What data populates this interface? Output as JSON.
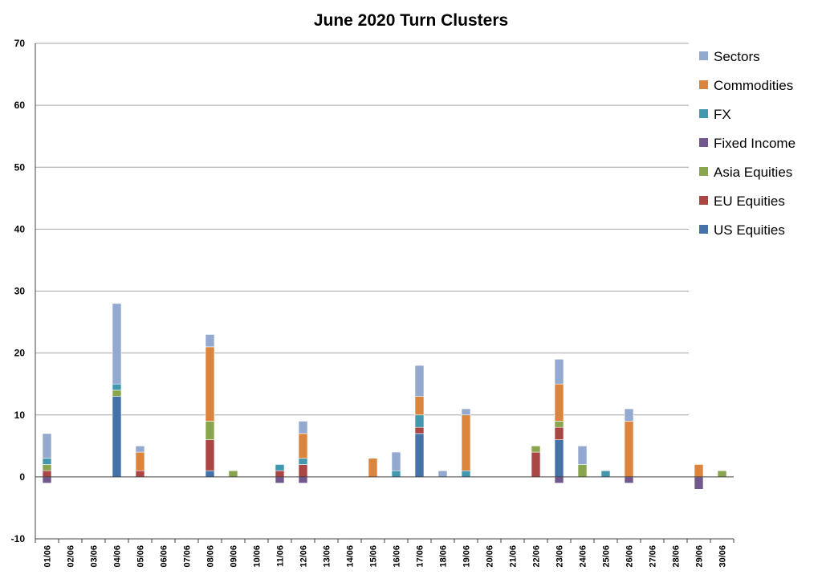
{
  "chart_data": {
    "type": "bar",
    "stacked": true,
    "title": "June 2020 Turn Clusters",
    "xlabel": "",
    "ylabel": "",
    "ylim": [
      -10,
      70
    ],
    "yticks": [
      -10,
      0,
      10,
      20,
      30,
      40,
      50,
      60,
      70
    ],
    "grid": true,
    "legend_position": "right",
    "categories": [
      "01/06",
      "02/06",
      "03/06",
      "04/06",
      "05/06",
      "06/06",
      "07/06",
      "08/06",
      "09/06",
      "10/06",
      "11/06",
      "12/06",
      "13/06",
      "14/06",
      "15/06",
      "16/06",
      "17/06",
      "18/06",
      "19/06",
      "20/06",
      "21/06",
      "22/06",
      "23/06",
      "24/06",
      "25/06",
      "26/06",
      "27/06",
      "28/06",
      "29/06",
      "30/06"
    ],
    "series": [
      {
        "name": "US Equities",
        "color": "#4572a7",
        "values": [
          0,
          0,
          0,
          13,
          0,
          0,
          0,
          1,
          0,
          0,
          0,
          0,
          0,
          0,
          0,
          0,
          7,
          0,
          0,
          0,
          0,
          0,
          6,
          0,
          0,
          0,
          0,
          0,
          0,
          0
        ]
      },
      {
        "name": "EU Equities",
        "color": "#aa4643",
        "values": [
          1,
          0,
          0,
          0,
          1,
          0,
          0,
          5,
          0,
          0,
          1,
          2,
          0,
          0,
          0,
          0,
          1,
          0,
          0,
          0,
          0,
          4,
          2,
          0,
          0,
          0,
          0,
          0,
          0,
          0
        ]
      },
      {
        "name": "Asia Equities",
        "color": "#89a54e",
        "values": [
          1,
          0,
          0,
          1,
          0,
          0,
          0,
          3,
          1,
          0,
          0,
          0,
          0,
          0,
          0,
          0,
          0,
          0,
          0,
          0,
          0,
          1,
          1,
          2,
          0,
          0,
          0,
          0,
          0,
          1
        ]
      },
      {
        "name": "Fixed Income",
        "color": "#71588f",
        "values": [
          -1,
          0,
          0,
          0,
          0,
          0,
          0,
          0,
          0,
          0,
          -1,
          -1,
          0,
          0,
          0,
          0,
          0,
          0,
          0,
          0,
          0,
          0,
          -1,
          0,
          0,
          -1,
          0,
          0,
          -2,
          0
        ]
      },
      {
        "name": "FX",
        "color": "#4198af",
        "values": [
          1,
          0,
          0,
          1,
          0,
          0,
          0,
          0,
          0,
          0,
          1,
          1,
          0,
          0,
          0,
          1,
          2,
          0,
          1,
          0,
          0,
          0,
          0,
          0,
          1,
          0,
          0,
          0,
          0,
          0
        ]
      },
      {
        "name": "Commodities",
        "color": "#db843d",
        "values": [
          0,
          0,
          0,
          0,
          3,
          0,
          0,
          12,
          0,
          0,
          0,
          4,
          0,
          0,
          3,
          0,
          3,
          0,
          9,
          0,
          0,
          0,
          6,
          0,
          0,
          9,
          0,
          0,
          2,
          0
        ]
      },
      {
        "name": "Sectors",
        "color": "#93a9cf",
        "values": [
          4,
          0,
          0,
          13,
          1,
          0,
          0,
          2,
          0,
          0,
          0,
          2,
          0,
          0,
          0,
          3,
          5,
          1,
          1,
          0,
          0,
          0,
          4,
          3,
          0,
          2,
          0,
          0,
          0,
          0
        ]
      }
    ],
    "legend_order": [
      "Sectors",
      "Commodities",
      "FX",
      "Fixed Income",
      "Asia Equities",
      "EU Equities",
      "US Equities"
    ]
  }
}
